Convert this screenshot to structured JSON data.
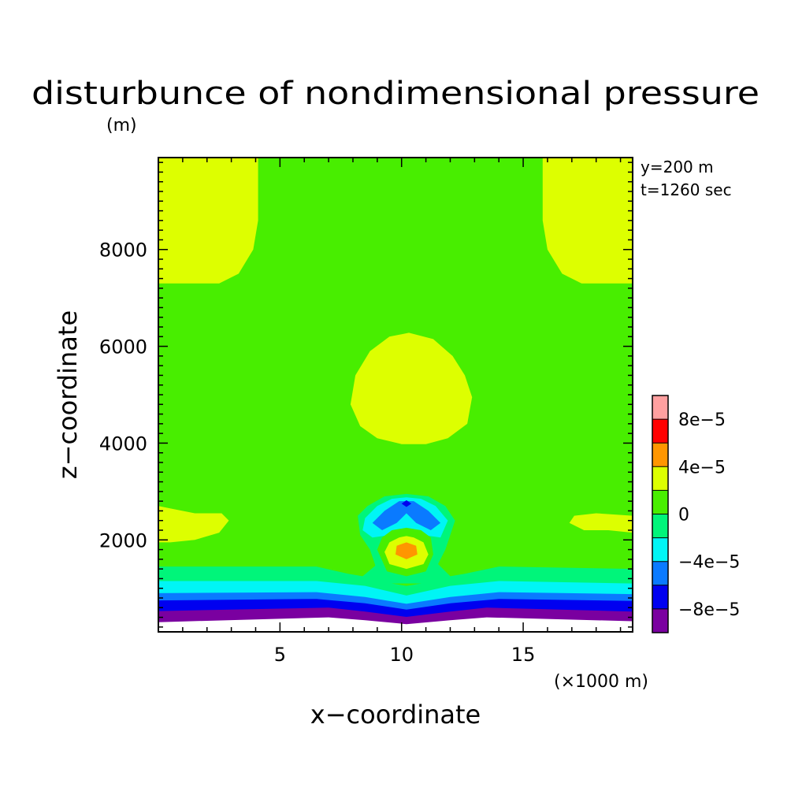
{
  "chart_data": {
    "type": "heatmap",
    "title": "disturbunce of nondimensional pressure",
    "yunit": "(m)",
    "xunit": "(×1000 m)",
    "xlabel": "x−coordinate",
    "ylabel": "z−coordinate",
    "annotations": [
      "y=200 m",
      "t=1260 sec"
    ],
    "xlim": [
      0,
      19.5
    ],
    "ylim": [
      100,
      9900
    ],
    "x_ticks": [
      5,
      10,
      15
    ],
    "y_ticks": [
      2000,
      4000,
      6000,
      8000
    ],
    "grid": false,
    "legend_position": "right",
    "colorbar": {
      "levels": [
        -0.0001,
        -8e-05,
        -6e-05,
        -4e-05,
        -2e-05,
        0,
        2e-05,
        4e-05,
        6e-05,
        8e-05,
        0.0001
      ],
      "colors": [
        "#7a00a0",
        "#0000f0",
        "#0a7aff",
        "#00f5f5",
        "#00f57a",
        "#48ee00",
        "#ddff00",
        "#ff9600",
        "#ff0000",
        "#ffa0a0"
      ],
      "tick_labels": [
        {
          "value": -8e-05,
          "label": "−8e−5"
        },
        {
          "value": -4e-05,
          "label": "−4e−5"
        },
        {
          "value": 0,
          "label": "0"
        },
        {
          "value": 4e-05,
          "label": "4e−5"
        },
        {
          "value": 8e-05,
          "label": "8e−5"
        }
      ]
    },
    "field": {
      "background_value": 1e-05,
      "regions": [
        {
          "name": "upper-left-positive",
          "value": 3e-05,
          "outline": [
            [
              0,
              9900
            ],
            [
              4.1,
              9900
            ],
            [
              4.1,
              8600
            ],
            [
              3.9,
              8000
            ],
            [
              3.3,
              7500
            ],
            [
              2.5,
              7300
            ],
            [
              0,
              7300
            ]
          ]
        },
        {
          "name": "upper-right-positive",
          "value": 3e-05,
          "outline": [
            [
              19.5,
              9900
            ],
            [
              15.8,
              9900
            ],
            [
              15.8,
              8600
            ],
            [
              16.0,
              8000
            ],
            [
              16.6,
              7500
            ],
            [
              17.4,
              7300
            ],
            [
              19.5,
              7300
            ]
          ]
        },
        {
          "name": "middle-positive-dome",
          "value": 3e-05,
          "outline": [
            [
              7.9,
              4800
            ],
            [
              8.1,
              5400
            ],
            [
              8.7,
              5900
            ],
            [
              9.5,
              6200
            ],
            [
              10.3,
              6280
            ],
            [
              11.3,
              6150
            ],
            [
              12.1,
              5800
            ],
            [
              12.6,
              5400
            ],
            [
              12.9,
              4950
            ],
            [
              12.7,
              4400
            ],
            [
              11.9,
              4100
            ],
            [
              11.0,
              3980
            ],
            [
              10.0,
              3980
            ],
            [
              9.0,
              4100
            ],
            [
              8.3,
              4350
            ]
          ]
        },
        {
          "name": "left-positive-lobe",
          "value": 3e-05,
          "outline": [
            [
              0,
              2700
            ],
            [
              0.5,
              2650
            ],
            [
              1.5,
              2550
            ],
            [
              2.6,
              2550
            ],
            [
              2.9,
              2400
            ],
            [
              2.5,
              2150
            ],
            [
              1.5,
              2000
            ],
            [
              0.5,
              1950
            ],
            [
              0,
              1950
            ]
          ]
        },
        {
          "name": "right-positive-lobe",
          "value": 3e-05,
          "outline": [
            [
              19.5,
              2500
            ],
            [
              18.0,
              2550
            ],
            [
              17.1,
              2500
            ],
            [
              16.9,
              2350
            ],
            [
              17.5,
              2200
            ],
            [
              18.5,
              2200
            ],
            [
              19.5,
              2150
            ]
          ]
        },
        {
          "name": "lower-band-boundary-1",
          "value": -1e-05,
          "outline": [
            [
              0,
              1450
            ],
            [
              6.5,
              1450
            ],
            [
              7.8,
              1300
            ],
            [
              8.4,
              1250
            ],
            [
              9.0,
              1500
            ],
            [
              9.6,
              1100
            ],
            [
              10.2,
              1050
            ],
            [
              10.8,
              1100
            ],
            [
              11.4,
              1550
            ],
            [
              12.0,
              1250
            ],
            [
              12.6,
              1300
            ],
            [
              14.0,
              1450
            ],
            [
              19.5,
              1400
            ],
            [
              19.5,
              100
            ],
            [
              0,
              100
            ]
          ]
        },
        {
          "name": "lower-band-boundary-2",
          "value": -3e-05,
          "outline": [
            [
              0,
              1150
            ],
            [
              6.5,
              1150
            ],
            [
              8.5,
              1050
            ],
            [
              10.2,
              850
            ],
            [
              12.0,
              1050
            ],
            [
              14.0,
              1150
            ],
            [
              19.5,
              1100
            ],
            [
              19.5,
              100
            ],
            [
              0,
              100
            ]
          ]
        },
        {
          "name": "lower-band-boundary-3",
          "value": -5e-05,
          "outline": [
            [
              0,
              900
            ],
            [
              6.5,
              920
            ],
            [
              8.5,
              820
            ],
            [
              10.2,
              680
            ],
            [
              12.0,
              820
            ],
            [
              14.0,
              920
            ],
            [
              19.5,
              880
            ],
            [
              19.5,
              100
            ],
            [
              0,
              100
            ]
          ]
        },
        {
          "name": "lower-band-boundary-4",
          "value": -7e-05,
          "outline": [
            [
              0,
              750
            ],
            [
              6.5,
              780
            ],
            [
              8.5,
              690
            ],
            [
              10.2,
              560
            ],
            [
              12.0,
              690
            ],
            [
              14.0,
              780
            ],
            [
              19.5,
              740
            ],
            [
              19.5,
              100
            ],
            [
              0,
              100
            ]
          ]
        },
        {
          "name": "lower-band-boundary-5",
          "value": -9e-05,
          "outline": [
            [
              0,
              530
            ],
            [
              7.0,
              600
            ],
            [
              8.5,
              520
            ],
            [
              10.2,
              410
            ],
            [
              12.0,
              520
            ],
            [
              13.5,
              600
            ],
            [
              19.5,
              520
            ],
            [
              19.5,
              100
            ],
            [
              0,
              100
            ]
          ]
        },
        {
          "name": "bottom-unfilled",
          "value": null,
          "outline": [
            [
              0,
              300
            ],
            [
              7.0,
              400
            ],
            [
              8.5,
              340
            ],
            [
              10.2,
              260
            ],
            [
              12.0,
              340
            ],
            [
              13.5,
              400
            ],
            [
              19.5,
              320
            ],
            [
              19.5,
              100
            ],
            [
              0,
              100
            ]
          ]
        },
        {
          "name": "blob-outer",
          "value": -1e-05,
          "outline": [
            [
              8.2,
              2500
            ],
            [
              8.6,
              2700
            ],
            [
              9.3,
              2900
            ],
            [
              10.2,
              2950
            ],
            [
              11.1,
              2900
            ],
            [
              11.8,
              2700
            ],
            [
              12.2,
              2400
            ],
            [
              12.0,
              2100
            ],
            [
              11.8,
              1800
            ],
            [
              11.5,
              1500
            ],
            [
              11.3,
              1100
            ],
            [
              9.1,
              1100
            ],
            [
              8.9,
              1500
            ],
            [
              8.7,
              1800
            ],
            [
              8.3,
              2100
            ]
          ]
        },
        {
          "name": "blob-cyan",
          "value": -3e-05,
          "outline": [
            [
              8.5,
              2450
            ],
            [
              9.0,
              2700
            ],
            [
              9.6,
              2850
            ],
            [
              10.2,
              2880
            ],
            [
              10.8,
              2850
            ],
            [
              11.4,
              2700
            ],
            [
              11.9,
              2400
            ],
            [
              11.6,
              2050
            ],
            [
              10.9,
              2100
            ],
            [
              10.2,
              2050
            ],
            [
              9.5,
              2100
            ],
            [
              8.8,
              2050
            ],
            [
              8.4,
              2200
            ]
          ]
        },
        {
          "name": "blob-blue",
          "value": -5e-05,
          "outline": [
            [
              8.8,
              2350
            ],
            [
              9.3,
              2600
            ],
            [
              9.9,
              2800
            ],
            [
              10.5,
              2800
            ],
            [
              11.1,
              2600
            ],
            [
              11.6,
              2350
            ],
            [
              11.2,
              2200
            ],
            [
              10.6,
              2350
            ],
            [
              10.2,
              2550
            ],
            [
              9.8,
              2350
            ],
            [
              9.2,
              2200
            ]
          ]
        },
        {
          "name": "blob-dark-blue",
          "value": -7e-05,
          "outline": [
            [
              10.0,
              2750
            ],
            [
              10.2,
              2820
            ],
            [
              10.4,
              2750
            ],
            [
              10.2,
              2680
            ]
          ]
        },
        {
          "name": "blob-core-positive",
          "value": 1e-05,
          "outline": [
            [
              9.0,
              1800
            ],
            [
              9.2,
              2050
            ],
            [
              9.6,
              2200
            ],
            [
              10.2,
              2250
            ],
            [
              10.8,
              2200
            ],
            [
              11.2,
              2050
            ],
            [
              11.3,
              1700
            ],
            [
              11.0,
              1350
            ],
            [
              10.2,
              1250
            ],
            [
              9.4,
              1350
            ]
          ]
        },
        {
          "name": "blob-core-yellow",
          "value": 3e-05,
          "outline": [
            [
              9.3,
              1750
            ],
            [
              9.5,
              1950
            ],
            [
              9.9,
              2050
            ],
            [
              10.2,
              2080
            ],
            [
              10.5,
              2050
            ],
            [
              10.9,
              1950
            ],
            [
              11.1,
              1700
            ],
            [
              10.9,
              1500
            ],
            [
              10.2,
              1400
            ],
            [
              9.5,
              1500
            ]
          ]
        },
        {
          "name": "blob-core-orange",
          "value": 5e-05,
          "outline": [
            [
              9.8,
              1880
            ],
            [
              10.2,
              1950
            ],
            [
              10.6,
              1880
            ],
            [
              10.65,
              1700
            ],
            [
              10.2,
              1600
            ],
            [
              9.75,
              1700
            ]
          ]
        }
      ]
    }
  }
}
